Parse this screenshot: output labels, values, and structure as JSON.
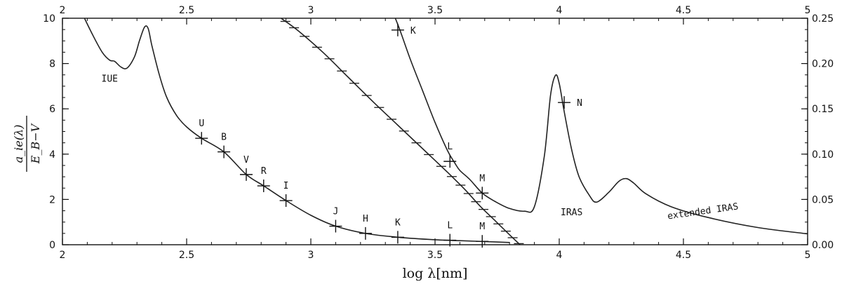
{
  "chart_data": {
    "type": "line",
    "x_axis": {
      "label": "log λ[nm]",
      "range": [
        2,
        5
      ],
      "ticks": [
        2,
        2.5,
        3,
        3.5,
        4,
        4.5,
        5
      ],
      "tick_labels": [
        "2",
        "2.5",
        "3",
        "3.5",
        "4",
        "4.5",
        "5"
      ]
    },
    "top_axis": {
      "range": [
        2,
        5
      ],
      "ticks": [
        2,
        2.5,
        3,
        3.5,
        4,
        4.5,
        5
      ],
      "tick_labels": [
        "2",
        "2.5",
        "3",
        "3.5",
        "4",
        "4.5",
        "5"
      ]
    },
    "y_axis_left": {
      "label_top": "a_ie(λ)",
      "label_bottom": "E_B−V",
      "range": [
        0,
        10
      ],
      "ticks": [
        0,
        2,
        4,
        6,
        8,
        10
      ],
      "tick_labels": [
        "0",
        "2",
        "4",
        "6",
        "8",
        "10"
      ]
    },
    "y_axis_right": {
      "range": [
        0,
        0.25
      ],
      "ticks": [
        0,
        0.05,
        0.1,
        0.15,
        0.2,
        0.25
      ],
      "tick_labels": [
        "0.00",
        "0.05",
        "0.10",
        "0.15",
        "0.20",
        "0.25"
      ]
    },
    "series": [
      {
        "axis": "bottom-left",
        "points": [
          [
            2.08,
            10.2
          ],
          [
            2.12,
            9.3
          ],
          [
            2.16,
            8.5
          ],
          [
            2.19,
            8.15
          ],
          [
            2.21,
            8.1
          ],
          [
            2.235,
            7.85
          ],
          [
            2.26,
            7.8
          ],
          [
            2.29,
            8.3
          ],
          [
            2.31,
            9.0
          ],
          [
            2.33,
            9.6
          ],
          [
            2.345,
            9.55
          ],
          [
            2.36,
            8.8
          ],
          [
            2.39,
            7.5
          ],
          [
            2.42,
            6.5
          ],
          [
            2.46,
            5.7
          ],
          [
            2.5,
            5.2
          ],
          [
            2.56,
            4.7
          ],
          [
            2.65,
            4.1
          ],
          [
            2.74,
            3.1
          ],
          [
            2.81,
            2.6
          ],
          [
            2.9,
            1.95
          ],
          [
            3.0,
            1.3
          ],
          [
            3.1,
            0.82
          ],
          [
            3.22,
            0.5
          ],
          [
            3.35,
            0.33
          ],
          [
            3.5,
            0.22
          ],
          [
            3.6,
            0.18
          ],
          [
            3.7,
            0.14
          ],
          [
            3.8,
            0.1
          ]
        ]
      },
      {
        "axis": "top-right",
        "points": [
          [
            2.88,
            0.25
          ],
          [
            2.95,
            0.236
          ],
          [
            3.05,
            0.212
          ],
          [
            3.15,
            0.185
          ],
          [
            3.25,
            0.158
          ],
          [
            3.35,
            0.132
          ],
          [
            3.45,
            0.106
          ],
          [
            3.55,
            0.08
          ],
          [
            3.62,
            0.061
          ],
          [
            3.68,
            0.043
          ],
          [
            3.74,
            0.027
          ],
          [
            3.8,
            0.011
          ],
          [
            3.85,
            -0.002
          ]
        ]
      },
      {
        "axis": "top-right",
        "points": [
          [
            3.34,
            0.25
          ],
          [
            3.36,
            0.236
          ],
          [
            3.4,
            0.205
          ],
          [
            3.45,
            0.17
          ],
          [
            3.5,
            0.135
          ],
          [
            3.55,
            0.104
          ],
          [
            3.58,
            0.09
          ],
          [
            3.6,
            0.082
          ],
          [
            3.64,
            0.072
          ],
          [
            3.69,
            0.057
          ],
          [
            3.74,
            0.048
          ],
          [
            3.8,
            0.04
          ],
          [
            3.86,
            0.037
          ],
          [
            3.9,
            0.042
          ],
          [
            3.94,
            0.098
          ],
          [
            3.965,
            0.165
          ],
          [
            3.985,
            0.187
          ],
          [
            4.0,
            0.178
          ],
          [
            4.02,
            0.147
          ],
          [
            4.05,
            0.105
          ],
          [
            4.08,
            0.075
          ],
          [
            4.12,
            0.055
          ],
          [
            4.15,
            0.047
          ],
          [
            4.2,
            0.058
          ],
          [
            4.24,
            0.07
          ],
          [
            4.27,
            0.073
          ],
          [
            4.3,
            0.068
          ],
          [
            4.35,
            0.056
          ],
          [
            4.45,
            0.042
          ],
          [
            4.6,
            0.03
          ],
          [
            4.8,
            0.019
          ],
          [
            5.0,
            0.012
          ]
        ]
      }
    ],
    "markers": [
      {
        "label": "U",
        "axis": "bottom-left",
        "x": 2.56,
        "y": 4.7
      },
      {
        "label": "B",
        "axis": "bottom-left",
        "x": 2.65,
        "y": 4.1
      },
      {
        "label": "V",
        "axis": "bottom-left",
        "x": 2.74,
        "y": 3.1
      },
      {
        "label": "R",
        "axis": "bottom-left",
        "x": 2.81,
        "y": 2.6
      },
      {
        "label": "I",
        "axis": "bottom-left",
        "x": 2.9,
        "y": 1.95
      },
      {
        "label": "J",
        "axis": "bottom-left",
        "x": 3.1,
        "y": 0.82
      },
      {
        "label": "H",
        "axis": "bottom-left",
        "x": 3.22,
        "y": 0.5
      },
      {
        "label": "K",
        "axis": "bottom-left",
        "x": 3.35,
        "y": 0.33
      },
      {
        "label": "L",
        "axis": "bottom-left",
        "x": 3.56,
        "y": 0.2
      },
      {
        "label": "M",
        "axis": "bottom-left",
        "x": 3.69,
        "y": 0.15
      },
      {
        "label": "K",
        "axis": "top-right",
        "x": 3.35,
        "y": 0.237
      },
      {
        "label": "L",
        "axis": "top-right",
        "x": 3.56,
        "y": 0.092
      },
      {
        "label": "M",
        "axis": "top-right",
        "x": 3.69,
        "y": 0.057
      },
      {
        "label": "N",
        "axis": "top-right",
        "x": 4.02,
        "y": 0.157
      }
    ],
    "annotations": [
      {
        "text": "IUE",
        "x": 2.19,
        "y": 7.2
      },
      {
        "text": "IRAS",
        "x": 4.05,
        "y": 1.3
      },
      {
        "text": "extended IRAS",
        "x": 4.58,
        "y": 1.35
      }
    ],
    "grid": false
  }
}
